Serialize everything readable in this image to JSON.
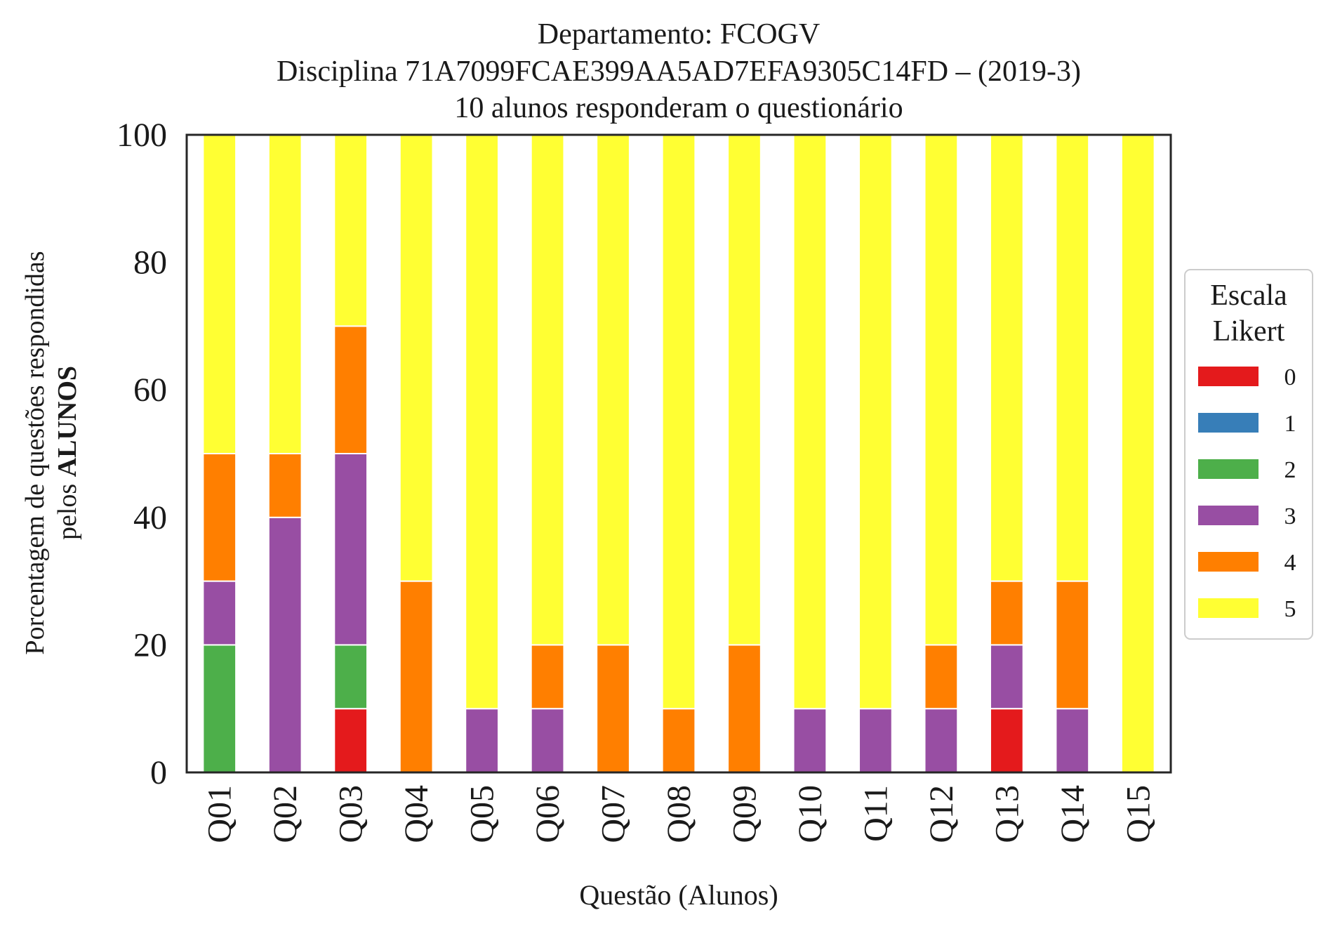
{
  "chart_data": {
    "type": "bar",
    "stacked": true,
    "title_lines": [
      "Departamento: FCOGV",
      "Disciplina 71A7099FCAE399AA5AD7EFA9305C14FD – (2019-3)",
      "10 alunos responderam o questionário"
    ],
    "xlabel": "Questão (Alunos)",
    "ylabel_line1": "Porcentagem de questões respondidas",
    "ylabel_line2_prefix": "pelos ",
    "ylabel_line2_bold": "ALUNOS",
    "ylim": [
      0,
      100
    ],
    "yticks": [
      "0",
      "20",
      "40",
      "60",
      "80",
      "100"
    ],
    "grid": false,
    "categories": [
      "Q01",
      "Q02",
      "Q03",
      "Q04",
      "Q05",
      "Q06",
      "Q07",
      "Q08",
      "Q09",
      "Q10",
      "Q11",
      "Q12",
      "Q13",
      "Q14",
      "Q15"
    ],
    "legend": {
      "title_lines": [
        "Escala",
        "Likert"
      ],
      "placement": "right"
    },
    "series": [
      {
        "name": "0",
        "color": "#e41a1c",
        "values": [
          0,
          0,
          10,
          0,
          0,
          0,
          0,
          0,
          0,
          0,
          0,
          0,
          10,
          0,
          0
        ]
      },
      {
        "name": "1",
        "color": "#377eb8",
        "values": [
          0,
          0,
          0,
          0,
          0,
          0,
          0,
          0,
          0,
          0,
          0,
          0,
          0,
          0,
          0
        ]
      },
      {
        "name": "2",
        "color": "#4daf4a",
        "values": [
          20,
          0,
          10,
          0,
          0,
          0,
          0,
          0,
          0,
          0,
          0,
          0,
          0,
          0,
          0
        ]
      },
      {
        "name": "3",
        "color": "#984ea3",
        "values": [
          10,
          40,
          30,
          0,
          10,
          10,
          0,
          0,
          0,
          10,
          10,
          10,
          10,
          10,
          0
        ]
      },
      {
        "name": "4",
        "color": "#ff7f00",
        "values": [
          20,
          10,
          20,
          30,
          0,
          10,
          20,
          10,
          20,
          0,
          0,
          10,
          10,
          20,
          0
        ]
      },
      {
        "name": "5",
        "color": "#ffff33",
        "values": [
          50,
          50,
          30,
          70,
          90,
          80,
          80,
          90,
          80,
          90,
          90,
          80,
          70,
          70,
          100
        ]
      }
    ]
  }
}
